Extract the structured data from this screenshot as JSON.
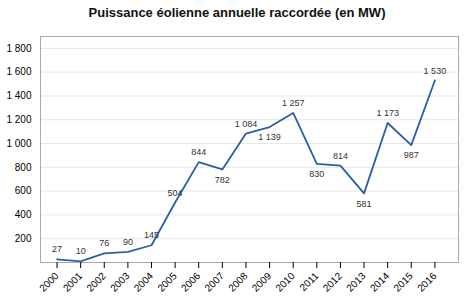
{
  "chart_data": {
    "type": "line",
    "title": "Puissance éolienne annuelle raccordée (en MW)",
    "x": [
      2000,
      2001,
      2002,
      2003,
      2004,
      2005,
      2006,
      2007,
      2008,
      2009,
      2010,
      2011,
      2012,
      2013,
      2014,
      2015,
      2016
    ],
    "values": [
      27,
      10,
      76,
      90,
      145,
      504,
      844,
      782,
      1084,
      1139,
      1257,
      830,
      814,
      581,
      1173,
      987,
      1530
    ],
    "value_labels": [
      "27",
      "10",
      "76",
      "90",
      "145",
      "504",
      "844",
      "782",
      "1 084",
      "1 139",
      "1 257",
      "830",
      "814",
      "581",
      "1 173",
      "987",
      "1 530"
    ],
    "color": "#2b5ea7",
    "xlim": [
      1999.3,
      2017.0
    ],
    "xticks": [
      2000,
      2001,
      2002,
      2003,
      2004,
      2005,
      2006,
      2007,
      2008,
      2009,
      2010,
      2011,
      2012,
      2013,
      2014,
      2015,
      2016
    ],
    "ylim": [
      0,
      1900
    ],
    "yticks": [
      {
        "value": 0,
        "label": ""
      },
      200,
      400,
      600,
      800,
      {
        "value": 1000,
        "label": "1 000"
      },
      {
        "value": 1200,
        "label": "1 200"
      },
      {
        "value": 1400,
        "label": "1 400"
      },
      {
        "value": 1600,
        "label": "1 600"
      },
      {
        "value": 1800,
        "label": "1 800"
      }
    ],
    "grid": true,
    "data_labels": true
  }
}
